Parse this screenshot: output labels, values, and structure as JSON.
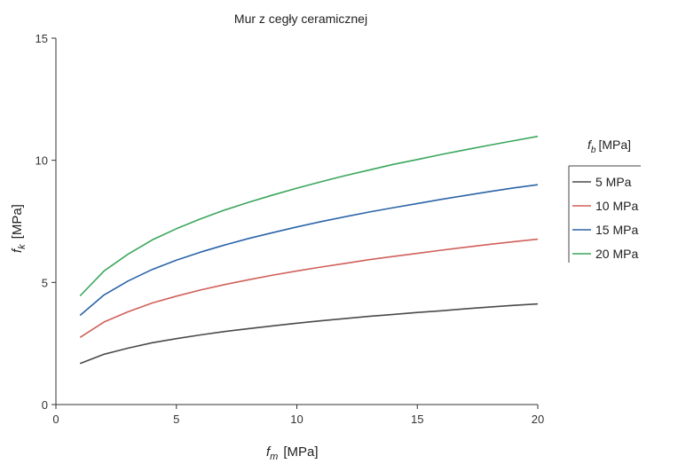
{
  "chart_data": {
    "type": "line",
    "title": "Mur z cegły ceramicznej",
    "xlabel": {
      "symbol": "f",
      "sub": "m",
      "unit": "[MPa]"
    },
    "ylabel": {
      "symbol": "f",
      "sub": "k",
      "unit": "[MPa]"
    },
    "xlim": [
      0,
      20
    ],
    "ylim": [
      0,
      15
    ],
    "xticks": [
      "0",
      "5",
      "10",
      "15",
      "20"
    ],
    "yticks": [
      "0",
      "5",
      "10",
      "15"
    ],
    "grid": false,
    "legend": {
      "placement": "right",
      "title": {
        "symbol": "f",
        "sub": "b",
        "unit": "[MPa]"
      }
    },
    "x": [
      1,
      2,
      3,
      4,
      5,
      6,
      7,
      8,
      9,
      10,
      11,
      12,
      13,
      14,
      15,
      16,
      17,
      18,
      19,
      20
    ],
    "series": [
      {
        "name": "5 MPa",
        "color": "#4a4a4a",
        "values": [
          1.68,
          2.06,
          2.31,
          2.53,
          2.7,
          2.85,
          2.99,
          3.11,
          3.22,
          3.33,
          3.43,
          3.52,
          3.61,
          3.69,
          3.77,
          3.84,
          3.92,
          3.99,
          4.06,
          4.12
        ]
      },
      {
        "name": "10 MPa",
        "color": "#d0605a",
        "values": [
          2.75,
          3.38,
          3.8,
          4.16,
          4.44,
          4.69,
          4.91,
          5.11,
          5.3,
          5.47,
          5.63,
          5.78,
          5.93,
          6.06,
          6.19,
          6.32,
          6.44,
          6.56,
          6.67,
          6.77
        ]
      },
      {
        "name": "15 MPa",
        "color": "#2b64a8",
        "values": [
          3.65,
          4.49,
          5.06,
          5.53,
          5.91,
          6.24,
          6.53,
          6.8,
          7.04,
          7.27,
          7.49,
          7.69,
          7.88,
          8.06,
          8.23,
          8.4,
          8.56,
          8.72,
          8.87,
          9.0
        ]
      },
      {
        "name": "20 MPa",
        "color": "#3aa65c",
        "values": [
          4.45,
          5.47,
          6.16,
          6.74,
          7.2,
          7.6,
          7.96,
          8.28,
          8.58,
          8.86,
          9.12,
          9.37,
          9.6,
          9.83,
          10.03,
          10.24,
          10.43,
          10.62,
          10.8,
          10.98
        ]
      }
    ]
  }
}
